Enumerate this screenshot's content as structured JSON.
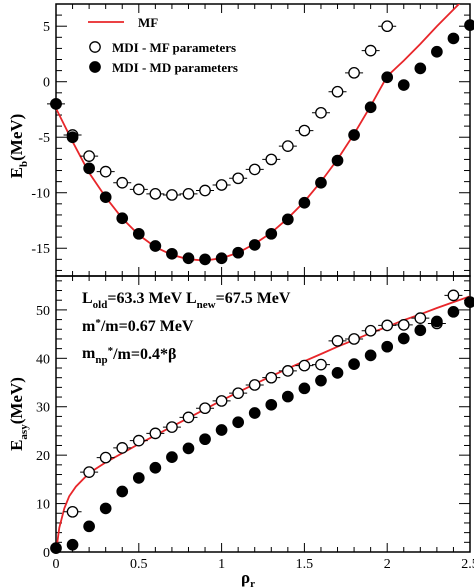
{
  "colors": {
    "mf_line": "#e8262a",
    "marker": "#000000",
    "frame": "#000000"
  },
  "chart_data": [
    {
      "type": "line",
      "panel": "top",
      "ylabel_main": "E",
      "ylabel_sub": "b",
      "ylabel_unit": "(MeV)",
      "xlim": [
        0,
        2.5
      ],
      "ylim": [
        -17.5,
        7
      ],
      "yticks": [
        5,
        0,
        -5,
        -10,
        -15
      ],
      "legend": [
        "MF",
        "MDI - MF parameters",
        "MDI - MD parameters"
      ],
      "legend_position": "top-left",
      "series": [
        {
          "name": "MF",
          "style": "line",
          "x": [
            0.0,
            0.05,
            0.1,
            0.15,
            0.2,
            0.3,
            0.4,
            0.5,
            0.6,
            0.7,
            0.8,
            0.9,
            1.0,
            1.1,
            1.2,
            1.3,
            1.4,
            1.5,
            1.6,
            1.7,
            1.8,
            1.9,
            2.0,
            2.1,
            2.2,
            2.3,
            2.4,
            2.5
          ],
          "y": [
            -2.4,
            -3.9,
            -5.4,
            -6.8,
            -8.2,
            -10.4,
            -12.3,
            -13.8,
            -14.9,
            -15.6,
            -16.0,
            -16.1,
            -15.9,
            -15.4,
            -14.6,
            -13.6,
            -12.3,
            -10.8,
            -9.0,
            -7.0,
            -4.7,
            -2.2,
            0.5,
            1.9,
            3.4,
            5.0,
            6.5,
            8.0
          ]
        },
        {
          "name": "MDI - MF parameters",
          "style": "open-circle",
          "x": [
            0.0,
            0.1,
            0.2,
            0.3,
            0.4,
            0.5,
            0.6,
            0.7,
            0.8,
            0.9,
            1.0,
            1.1,
            1.2,
            1.3,
            1.4,
            1.5,
            1.6,
            1.7,
            1.8,
            1.9,
            2.0
          ],
          "y": [
            -2.0,
            -4.8,
            -6.7,
            -8.1,
            -9.1,
            -9.7,
            -10.1,
            -10.2,
            -10.1,
            -9.8,
            -9.3,
            -8.7,
            -7.9,
            -7.0,
            -5.8,
            -4.4,
            -2.8,
            -0.9,
            0.8,
            2.8,
            5.0
          ]
        },
        {
          "name": "MDI - MD parameters",
          "style": "filled-circle",
          "x": [
            0.0,
            0.1,
            0.2,
            0.3,
            0.4,
            0.5,
            0.6,
            0.7,
            0.8,
            0.9,
            1.0,
            1.1,
            1.2,
            1.3,
            1.4,
            1.5,
            1.6,
            1.7,
            1.8,
            1.9,
            2.0,
            2.1,
            2.2,
            2.3,
            2.4,
            2.5
          ],
          "y": [
            -2.0,
            -5.0,
            -7.8,
            -10.4,
            -12.3,
            -13.7,
            -14.8,
            -15.5,
            -15.9,
            -16.0,
            -15.9,
            -15.4,
            -14.7,
            -13.7,
            -12.4,
            -10.9,
            -9.1,
            -7.1,
            -4.8,
            -2.3,
            0.4,
            -0.3,
            1.2,
            2.7,
            3.9,
            5.1
          ]
        }
      ]
    },
    {
      "type": "line",
      "panel": "bottom",
      "ylabel_main": "E",
      "ylabel_sub": "asy",
      "ylabel_unit": "(MeV)",
      "xlabel_main": "ρ",
      "xlabel_sub": "r",
      "xlim": [
        0,
        2.5
      ],
      "ylim": [
        0,
        57
      ],
      "xticks": [
        0,
        0.5,
        1,
        1.5,
        2,
        2.5
      ],
      "xtick_labels": [
        "0",
        "0.5",
        "1",
        "1.5",
        "2",
        "2.5"
      ],
      "yticks": [
        0,
        10,
        20,
        30,
        40,
        50
      ],
      "annotations": [
        {
          "parts": [
            [
              "L",
              ""
            ],
            [
              "old",
              "sub"
            ],
            [
              "=63.3 MeV L",
              ""
            ],
            [
              "new",
              "sub"
            ],
            [
              "=67.5 MeV",
              ""
            ]
          ]
        },
        {
          "parts": [
            [
              "m",
              ""
            ],
            [
              "*",
              "sup"
            ],
            [
              "/m=0.67 MeV",
              ""
            ]
          ]
        },
        {
          "parts": [
            [
              "m",
              ""
            ],
            [
              "np",
              "sub"
            ],
            [
              "*",
              "sup"
            ],
            [
              "/m=0.4*β",
              ""
            ]
          ]
        }
      ],
      "series": [
        {
          "name": "MF",
          "style": "line",
          "x": [
            0.0,
            0.02,
            0.05,
            0.08,
            0.12,
            0.2,
            0.3,
            0.4,
            0.5,
            0.6,
            0.7,
            0.8,
            0.9,
            1.0,
            1.1,
            1.2,
            1.3,
            1.4,
            1.5,
            1.6,
            1.7,
            1.8,
            1.9,
            2.0,
            2.1,
            2.2,
            2.3,
            2.4,
            2.5
          ],
          "y": [
            0.0,
            5.0,
            9.0,
            11.5,
            13.5,
            16.3,
            18.5,
            20.4,
            22.3,
            24.1,
            25.9,
            27.7,
            29.5,
            31.3,
            33.0,
            34.7,
            36.3,
            37.9,
            39.4,
            40.9,
            42.4,
            43.8,
            45.2,
            46.5,
            47.9,
            49.1,
            50.4,
            51.6,
            52.8
          ]
        },
        {
          "name": "MDI - MF parameters",
          "style": "open-circle",
          "x": [
            0.1,
            0.2,
            0.3,
            0.4,
            0.5,
            0.6,
            0.7,
            0.8,
            0.9,
            1.0,
            1.1,
            1.2,
            1.3,
            1.4,
            1.5,
            1.6,
            1.7,
            1.8,
            1.9,
            2.0,
            2.1,
            2.2,
            2.3,
            2.4
          ],
          "y": [
            8.3,
            16.5,
            19.5,
            21.5,
            23.0,
            24.5,
            25.8,
            27.8,
            29.7,
            31.2,
            32.8,
            34.5,
            36.0,
            37.4,
            38.5,
            38.7,
            43.6,
            44.0,
            45.7,
            46.8,
            46.9,
            48.3,
            47.2,
            53.0
          ]
        },
        {
          "name": "MDI - MD parameters",
          "style": "filled-circle",
          "x": [
            0.0,
            0.1,
            0.2,
            0.3,
            0.4,
            0.5,
            0.6,
            0.7,
            0.8,
            0.9,
            1.0,
            1.1,
            1.2,
            1.3,
            1.4,
            1.5,
            1.6,
            1.7,
            1.8,
            1.9,
            2.0,
            2.1,
            2.2,
            2.3,
            2.4,
            2.5
          ],
          "y": [
            0.8,
            1.5,
            5.3,
            9.0,
            12.5,
            15.3,
            17.4,
            19.6,
            21.4,
            23.3,
            25.2,
            26.8,
            28.7,
            30.4,
            32.1,
            33.8,
            35.4,
            37.0,
            38.8,
            40.6,
            42.4,
            44.1,
            45.8,
            47.6,
            49.6,
            51.6
          ]
        }
      ]
    }
  ]
}
